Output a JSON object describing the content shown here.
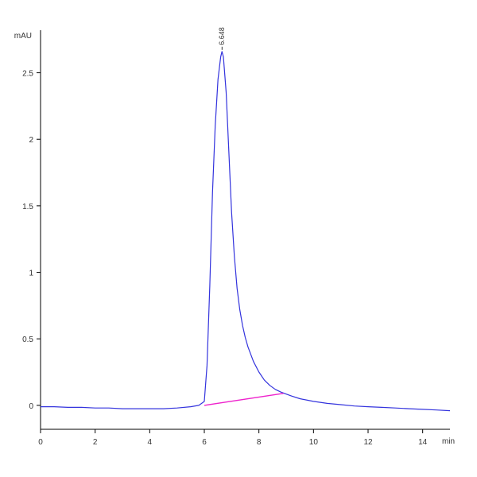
{
  "chart_data": {
    "type": "line",
    "x_unit": "min",
    "y_unit": "mAU",
    "xlim": [
      0,
      15
    ],
    "ylim": [
      -0.18,
      2.82
    ],
    "x_ticks": [
      0,
      2,
      4,
      6,
      8,
      10,
      12,
      14
    ],
    "y_ticks": [
      0,
      0.5,
      1,
      1.5,
      2,
      2.5
    ],
    "x_tick_labels": [
      "0",
      "2",
      "4",
      "6",
      "8",
      "10",
      "12",
      "14"
    ],
    "y_tick_labels": [
      "0",
      "0.5",
      "1",
      "1.5",
      "2",
      "2.5"
    ],
    "grid": false,
    "series": [
      {
        "color": "#3333dd",
        "x": [
          0,
          0.5,
          1,
          1.5,
          2,
          2.5,
          3,
          3.5,
          4,
          4.5,
          5,
          5.5,
          5.8,
          6.0,
          6.1,
          6.2,
          6.3,
          6.4,
          6.5,
          6.6,
          6.648,
          6.7,
          6.8,
          6.9,
          7.0,
          7.1,
          7.2,
          7.3,
          7.4,
          7.5,
          7.6,
          7.8,
          8.0,
          8.2,
          8.4,
          8.6,
          8.8,
          9.0,
          9.2,
          9.5,
          10.0,
          10.5,
          11,
          11.5,
          12,
          12.5,
          13,
          13.5,
          14,
          14.5,
          15
        ],
        "y": [
          -0.01,
          -0.01,
          -0.015,
          -0.015,
          -0.02,
          -0.02,
          -0.025,
          -0.025,
          -0.025,
          -0.025,
          -0.02,
          -0.01,
          0.0,
          0.03,
          0.3,
          0.9,
          1.6,
          2.1,
          2.45,
          2.62,
          2.66,
          2.62,
          2.35,
          1.9,
          1.45,
          1.12,
          0.88,
          0.72,
          0.6,
          0.51,
          0.44,
          0.33,
          0.25,
          0.19,
          0.15,
          0.12,
          0.1,
          0.085,
          0.07,
          0.05,
          0.03,
          0.015,
          0.005,
          -0.005,
          -0.01,
          -0.015,
          -0.02,
          -0.025,
          -0.03,
          -0.035,
          -0.04
        ]
      }
    ],
    "baseline": {
      "color": "#ee22cc",
      "x": [
        6.0,
        8.9
      ],
      "y": [
        0.0,
        0.09
      ]
    },
    "annotations": [
      {
        "text": "6.648",
        "x": 6.648,
        "y": 2.66
      }
    ]
  }
}
